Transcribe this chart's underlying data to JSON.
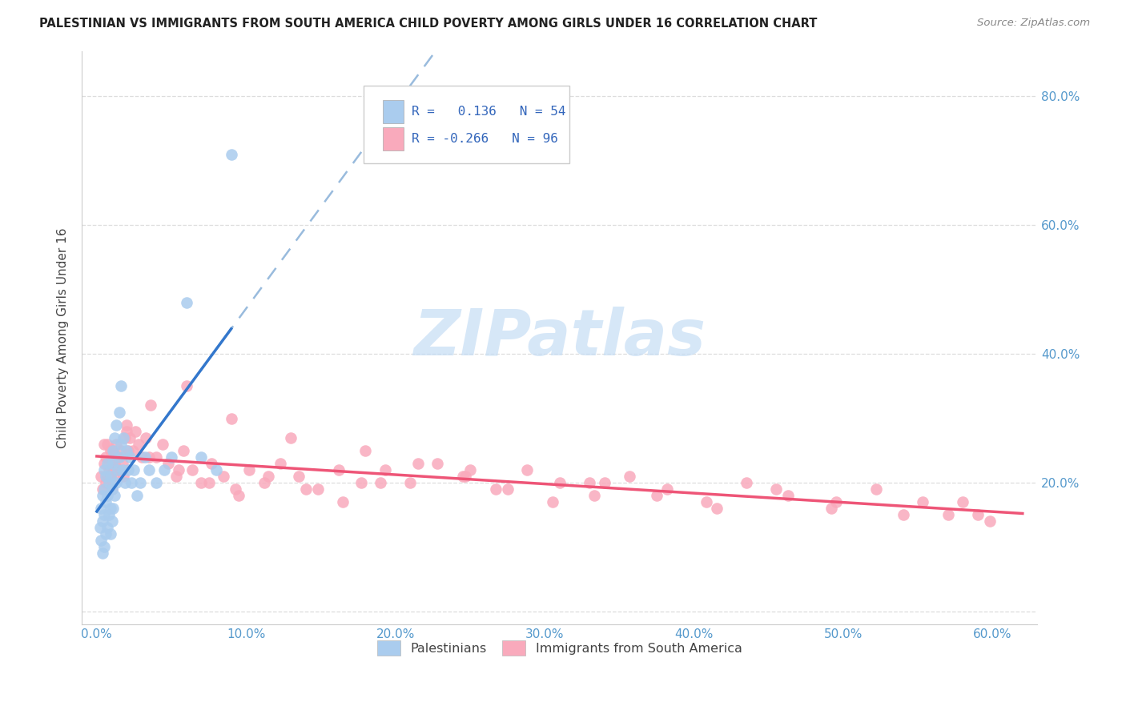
{
  "title": "PALESTINIAN VS IMMIGRANTS FROM SOUTH AMERICA CHILD POVERTY AMONG GIRLS UNDER 16 CORRELATION CHART",
  "source": "Source: ZipAtlas.com",
  "ylabel": "Child Poverty Among Girls Under 16",
  "xlim": [
    -0.01,
    0.63
  ],
  "ylim": [
    -0.02,
    0.87
  ],
  "blue_R": 0.136,
  "blue_N": 54,
  "pink_R": -0.266,
  "pink_N": 96,
  "blue_color": "#aaccee",
  "pink_color": "#f9aabc",
  "blue_line_color": "#3377cc",
  "pink_line_color": "#ee5577",
  "blue_dashed_color": "#99bbdd",
  "grid_color": "#dddddd",
  "watermark_color": "#c5ddf5",
  "title_color": "#222222",
  "source_color": "#888888",
  "tick_color": "#5599cc",
  "ylabel_color": "#444444",
  "legend_label_blue": "Palestinians",
  "legend_label_pink": "Immigrants from South America",
  "x_tick_vals": [
    0.0,
    0.1,
    0.2,
    0.3,
    0.4,
    0.5,
    0.6
  ],
  "x_tick_labels": [
    "0.0%",
    "10.0%",
    "20.0%",
    "30.0%",
    "40.0%",
    "50.0%",
    "60.0%"
  ],
  "y_tick_vals": [
    0.0,
    0.2,
    0.4,
    0.6,
    0.8
  ],
  "y_tick_labels_right": [
    "",
    "20.0%",
    "40.0%",
    "60.0%",
    "80.0%"
  ],
  "blue_scatter_x": [
    0.002,
    0.003,
    0.003,
    0.004,
    0.004,
    0.004,
    0.005,
    0.005,
    0.005,
    0.005,
    0.006,
    0.006,
    0.006,
    0.007,
    0.007,
    0.007,
    0.008,
    0.008,
    0.009,
    0.009,
    0.009,
    0.01,
    0.01,
    0.01,
    0.011,
    0.011,
    0.012,
    0.012,
    0.013,
    0.013,
    0.014,
    0.015,
    0.015,
    0.016,
    0.016,
    0.017,
    0.018,
    0.019,
    0.02,
    0.021,
    0.022,
    0.023,
    0.025,
    0.027,
    0.029,
    0.032,
    0.035,
    0.04,
    0.045,
    0.05,
    0.06,
    0.07,
    0.08,
    0.09
  ],
  "blue_scatter_y": [
    0.13,
    0.11,
    0.16,
    0.09,
    0.14,
    0.18,
    0.1,
    0.15,
    0.19,
    0.22,
    0.12,
    0.17,
    0.21,
    0.13,
    0.18,
    0.23,
    0.15,
    0.2,
    0.12,
    0.16,
    0.21,
    0.14,
    0.19,
    0.23,
    0.16,
    0.25,
    0.18,
    0.27,
    0.2,
    0.29,
    0.22,
    0.24,
    0.31,
    0.26,
    0.35,
    0.22,
    0.27,
    0.2,
    0.25,
    0.22,
    0.24,
    0.2,
    0.22,
    0.18,
    0.2,
    0.24,
    0.22,
    0.2,
    0.22,
    0.24,
    0.48,
    0.24,
    0.22,
    0.71
  ],
  "pink_scatter_x": [
    0.003,
    0.004,
    0.005,
    0.005,
    0.006,
    0.006,
    0.007,
    0.007,
    0.008,
    0.008,
    0.009,
    0.009,
    0.01,
    0.01,
    0.011,
    0.011,
    0.012,
    0.012,
    0.013,
    0.014,
    0.015,
    0.016,
    0.017,
    0.018,
    0.019,
    0.02,
    0.021,
    0.022,
    0.024,
    0.026,
    0.028,
    0.03,
    0.033,
    0.036,
    0.04,
    0.044,
    0.048,
    0.053,
    0.058,
    0.064,
    0.07,
    0.077,
    0.085,
    0.093,
    0.102,
    0.112,
    0.123,
    0.135,
    0.148,
    0.162,
    0.177,
    0.193,
    0.21,
    0.228,
    0.247,
    0.267,
    0.288,
    0.31,
    0.333,
    0.357,
    0.382,
    0.408,
    0.435,
    0.463,
    0.492,
    0.522,
    0.553,
    0.57,
    0.58,
    0.59,
    0.598,
    0.02,
    0.035,
    0.055,
    0.075,
    0.095,
    0.115,
    0.14,
    0.165,
    0.19,
    0.215,
    0.245,
    0.275,
    0.305,
    0.34,
    0.375,
    0.415,
    0.455,
    0.495,
    0.54,
    0.06,
    0.09,
    0.13,
    0.18,
    0.25,
    0.33
  ],
  "pink_scatter_y": [
    0.21,
    0.19,
    0.23,
    0.26,
    0.2,
    0.24,
    0.21,
    0.26,
    0.22,
    0.2,
    0.25,
    0.21,
    0.23,
    0.19,
    0.22,
    0.25,
    0.23,
    0.21,
    0.26,
    0.24,
    0.22,
    0.25,
    0.23,
    0.21,
    0.27,
    0.29,
    0.25,
    0.27,
    0.25,
    0.28,
    0.26,
    0.24,
    0.27,
    0.32,
    0.24,
    0.26,
    0.23,
    0.21,
    0.25,
    0.22,
    0.2,
    0.23,
    0.21,
    0.19,
    0.22,
    0.2,
    0.23,
    0.21,
    0.19,
    0.22,
    0.2,
    0.22,
    0.2,
    0.23,
    0.21,
    0.19,
    0.22,
    0.2,
    0.18,
    0.21,
    0.19,
    0.17,
    0.2,
    0.18,
    0.16,
    0.19,
    0.17,
    0.15,
    0.17,
    0.15,
    0.14,
    0.28,
    0.24,
    0.22,
    0.2,
    0.18,
    0.21,
    0.19,
    0.17,
    0.2,
    0.23,
    0.21,
    0.19,
    0.17,
    0.2,
    0.18,
    0.16,
    0.19,
    0.17,
    0.15,
    0.35,
    0.3,
    0.27,
    0.25,
    0.22,
    0.2
  ]
}
